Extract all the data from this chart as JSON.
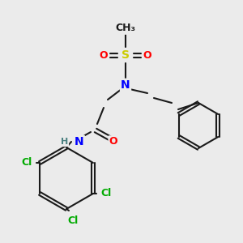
{
  "bg_color": "#ebebeb",
  "bond_color": "#1a1a1a",
  "line_width": 1.5,
  "atom_colors": {
    "S": "#cccc00",
    "O": "#ff0000",
    "N": "#0000ff",
    "Cl": "#00aa00",
    "H": "#4a8080",
    "C": "#1a1a1a"
  },
  "font_size": 9
}
